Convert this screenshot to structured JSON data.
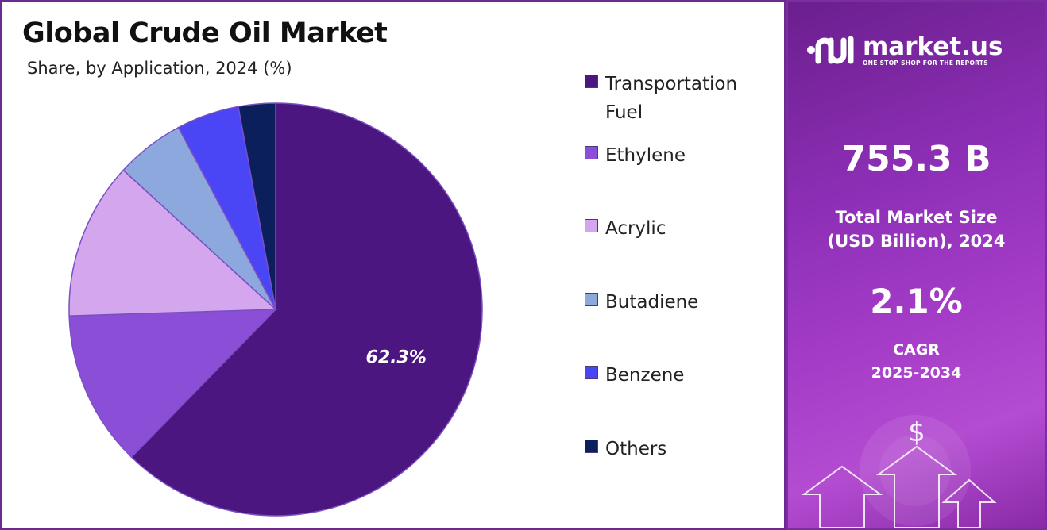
{
  "chart_data": {
    "type": "pie",
    "title": "Global Crude Oil Market",
    "subtitle": "Share, by Application, 2024 (%)",
    "categories": [
      "Transportation Fuel",
      "Ethylene",
      "Acrylic",
      "Butadiene",
      "Benzene",
      "Others"
    ],
    "values": [
      62.3,
      12.2,
      12.3,
      5.4,
      4.9,
      2.9
    ],
    "colors": [
      "#4b1680",
      "#8a4fd6",
      "#d4a6ee",
      "#8ca8dc",
      "#4a45f5",
      "#0b1f5c"
    ],
    "data_labels": [
      "62.3%",
      "",
      "",
      "",
      "",
      ""
    ],
    "legend_position": "right"
  },
  "info": {
    "brand_name": "market.us",
    "brand_tagline": "ONE STOP SHOP FOR THE REPORTS",
    "market_size_value": "755.3 B",
    "market_size_label_line1": "Total Market Size",
    "market_size_label_line2": "(USD Billion), 2024",
    "cagr_value": "2.1%",
    "cagr_label_line1": "CAGR",
    "cagr_label_line2": "2025-2034"
  }
}
